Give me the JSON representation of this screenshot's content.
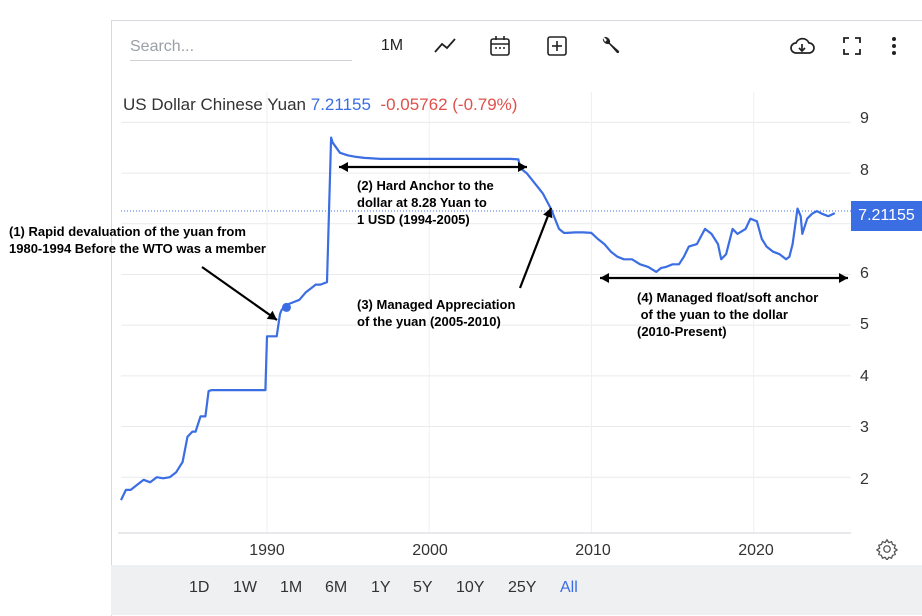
{
  "toolbar": {
    "search_placeholder": "Search...",
    "interval_label": "1M",
    "icons": [
      "line-chart-icon",
      "calendar-icon",
      "add-box-icon",
      "wrench-icon",
      "cloud-download-icon",
      "fullscreen-icon",
      "more-vert-icon"
    ]
  },
  "legend": {
    "name": "US Dollar Chinese Yuan",
    "price": "7.21155",
    "change": "-0.05762 (-0.79%)"
  },
  "price_tag": "7.21155",
  "range_buttons": [
    "1D",
    "1W",
    "1M",
    "6M",
    "1Y",
    "5Y",
    "10Y",
    "25Y",
    "All"
  ],
  "active_range": "All",
  "colors": {
    "line": "#3b6de3",
    "negative": "#e0504b",
    "tag": "#3b6de3"
  },
  "chart_data": {
    "type": "line",
    "title": "US Dollar Chinese Yuan",
    "xlim": [
      1981,
      2026
    ],
    "ylim": [
      0.9,
      9.6
    ],
    "x_ticks": [
      "1990",
      "2000",
      "2010",
      "2020"
    ],
    "y_ticks": [
      "2",
      "3",
      "4",
      "5",
      "6",
      "7",
      "8",
      "9"
    ],
    "grid": true,
    "last_value": 7.21155,
    "series": [
      {
        "x": [
          1981.0,
          1981.3,
          1981.6,
          1982.0,
          1982.4,
          1982.8,
          1983.2,
          1983.6,
          1984.0,
          1984.4,
          1984.8,
          1985.1,
          1985.4,
          1985.6,
          1985.9,
          1986.2,
          1986.4,
          1986.6,
          1986.9,
          1987.5,
          1988.5,
          1989.5,
          1989.9,
          1990.0,
          1990.3,
          1990.6,
          1990.8,
          1990.9,
          1991.2,
          1991.6,
          1992.0,
          1992.4,
          1992.8,
          1993.0,
          1993.3,
          1993.7,
          1993.95,
          1994.05,
          1994.5,
          1995.0,
          1995.5,
          1996.0,
          1997.0,
          1998.0,
          1999.0,
          2000.0,
          2001.0,
          2002.0,
          2003.0,
          2004.0,
          2005.0,
          2005.5,
          2005.6,
          2006.0,
          2006.5,
          2007.0,
          2007.5,
          2008.0,
          2008.3,
          2008.5,
          2009.0,
          2009.5,
          2010.0,
          2010.4,
          2010.8,
          2011.2,
          2011.6,
          2012.0,
          2012.5,
          2013.0,
          2013.5,
          2014.0,
          2014.3,
          2014.6,
          2015.0,
          2015.4,
          2015.7,
          2016.0,
          2016.5,
          2017.0,
          2017.4,
          2017.8,
          2018.0,
          2018.3,
          2018.7,
          2019.0,
          2019.5,
          2019.8,
          2020.2,
          2020.5,
          2020.8,
          2021.2,
          2021.6,
          2022.0,
          2022.2,
          2022.4,
          2022.7,
          2022.9,
          2023.0,
          2023.3,
          2023.6,
          2023.9,
          2024.2,
          2024.6,
          2025.0
        ],
        "y": [
          1.55,
          1.75,
          1.75,
          1.85,
          1.95,
          1.9,
          2.0,
          1.98,
          2.0,
          2.1,
          2.3,
          2.8,
          2.9,
          2.9,
          3.2,
          3.2,
          3.7,
          3.72,
          3.72,
          3.72,
          3.72,
          3.72,
          3.72,
          4.78,
          4.78,
          4.78,
          5.22,
          5.3,
          5.4,
          5.45,
          5.5,
          5.65,
          5.75,
          5.8,
          5.8,
          5.85,
          8.7,
          8.6,
          8.4,
          8.35,
          8.32,
          8.3,
          8.28,
          8.28,
          8.28,
          8.28,
          8.28,
          8.28,
          8.28,
          8.28,
          8.28,
          8.27,
          8.1,
          8.0,
          7.8,
          7.6,
          7.3,
          6.9,
          6.82,
          6.82,
          6.83,
          6.83,
          6.82,
          6.7,
          6.6,
          6.45,
          6.35,
          6.3,
          6.3,
          6.2,
          6.15,
          6.05,
          6.13,
          6.15,
          6.2,
          6.2,
          6.35,
          6.55,
          6.6,
          6.9,
          6.8,
          6.6,
          6.3,
          6.4,
          6.9,
          6.8,
          6.9,
          7.1,
          7.05,
          6.7,
          6.55,
          6.45,
          6.4,
          6.3,
          6.35,
          6.6,
          7.3,
          7.15,
          6.8,
          7.1,
          7.2,
          7.25,
          7.2,
          7.15,
          7.21155
        ]
      }
    ],
    "annotations": [
      "(1) Rapid devaluation of the yuan from\n1980-1994 Before the WTO was a member",
      "(2) Hard Anchor to the\ndollar at 8.28 Yuan to\n1 USD (1994-2005)",
      "(3) Managed Appreciation\nof the yuan (2005-2010)",
      "(4) Managed float/soft anchor\n of the yuan to the dollar\n(2010-Present)"
    ]
  }
}
